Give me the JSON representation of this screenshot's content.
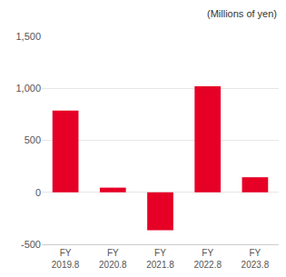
{
  "chart_data": {
    "type": "bar",
    "annotation": "(Millions of yen)",
    "categories": [
      "FY\n2019.8",
      "FY\n2020.8",
      "FY\n2021.8",
      "FY\n2022.8",
      "FY\n2023.8"
    ],
    "values": [
      785,
      45,
      -365,
      1020,
      145
    ],
    "color": "#e60026",
    "ylim": [
      -500,
      1500
    ],
    "yticks": [
      -500,
      0,
      500,
      {
        "value": 1000,
        "label": "1,000"
      },
      {
        "value": 1500,
        "label": "1,500"
      }
    ],
    "grid": true
  }
}
